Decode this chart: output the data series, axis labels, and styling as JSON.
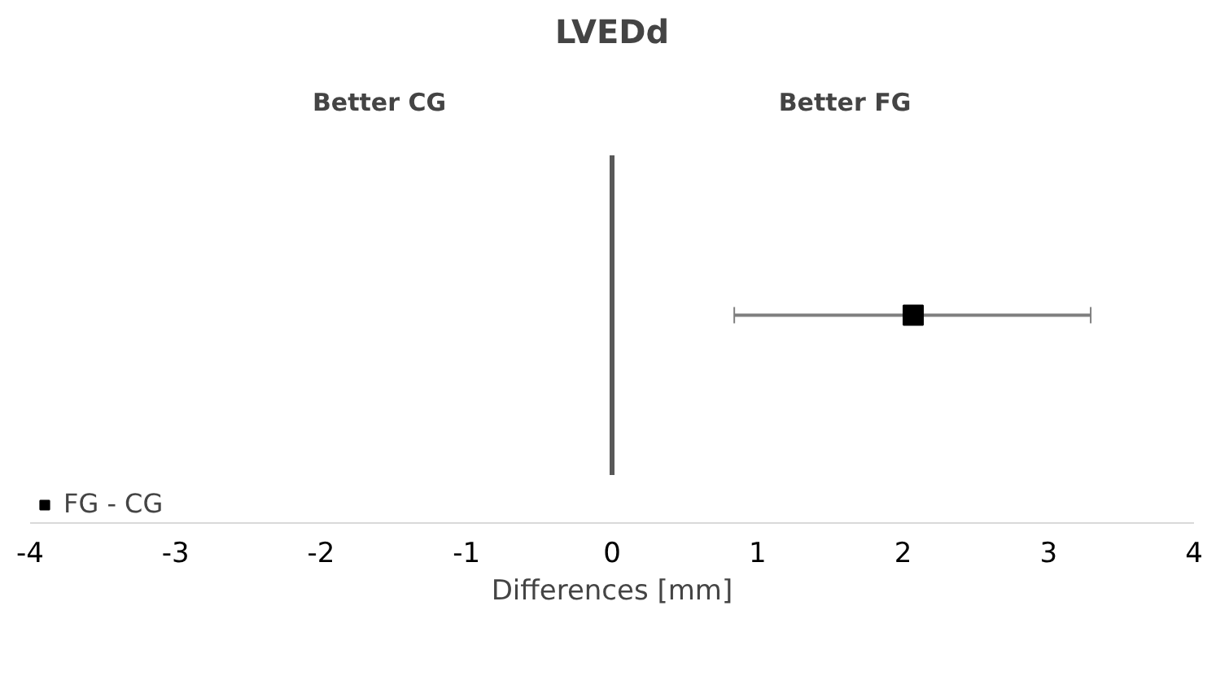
{
  "chart_data": {
    "type": "scatter",
    "title": "LVEDd",
    "xlabel": "Differences [mm]",
    "annotations": [
      "Better CG",
      "Better FG"
    ],
    "orientation": "horizontal",
    "categories": [
      null
    ],
    "series": [
      {
        "name": "FG - CG",
        "color": "#000000",
        "values": [
          2.07
        ],
        "errors": [
          [
            0.84,
            3.29
          ]
        ]
      }
    ],
    "marker": "square",
    "xlim": [
      -4,
      4
    ],
    "xticks": [
      -4,
      -3,
      -2,
      -1,
      0,
      1,
      2,
      3,
      4
    ],
    "ref_lines": [
      {
        "axis": "x",
        "value": 0,
        "color": "#595959"
      }
    ],
    "legend": "bottom left",
    "tick_labels": "x"
  }
}
